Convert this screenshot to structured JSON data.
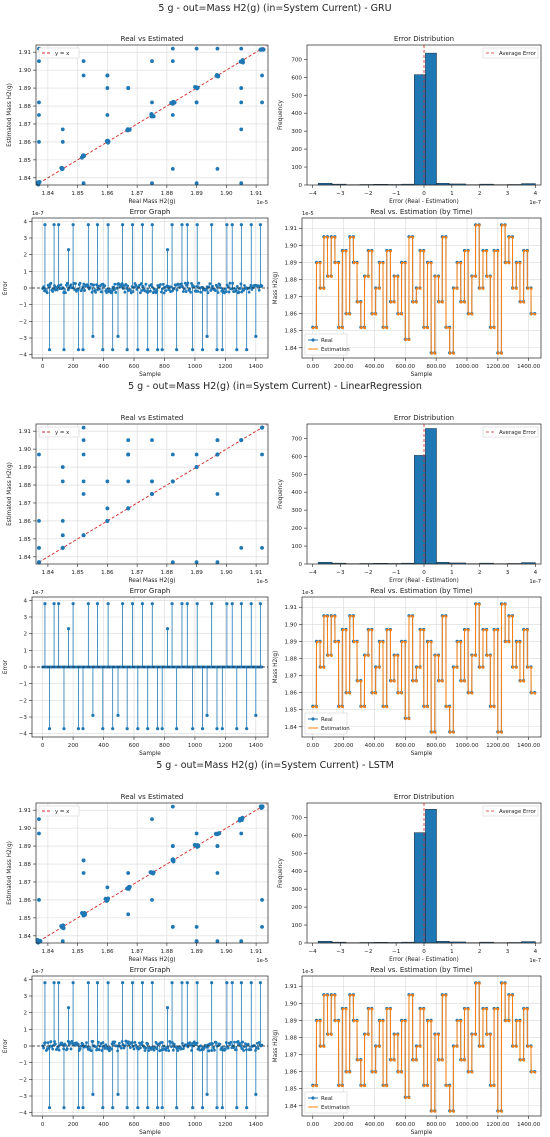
{
  "colors": {
    "blue": "#1f77b4",
    "orange": "#ff7f0e",
    "red": "#d62728",
    "grid": "#d9d9d9"
  },
  "groups": [
    {
      "title": "5 g - out=Mass H2(g) (in=System Current) - GRU",
      "variant": "gru"
    },
    {
      "title": "5 g - out=Mass H2(g) (in=System Current) - LinearRegression",
      "variant": "lr"
    },
    {
      "title": "5 g - out=Mass H2(g) (in=System Current) - LSTM",
      "variant": "lstm"
    }
  ],
  "chart_data": [
    {
      "type": "scatter",
      "title": "Real vs Estimated",
      "xlabel": "Real Mass H2(g)",
      "ylabel": "Estimated Mass H2(g)",
      "offset_label": "1e-5",
      "xlim": [
        1.836,
        1.914
      ],
      "ylim": [
        1.836,
        1.914
      ],
      "x_ticks": [
        1.84,
        1.85,
        1.86,
        1.87,
        1.88,
        1.89,
        1.9,
        1.91
      ],
      "y_ticks": [
        1.84,
        1.85,
        1.86,
        1.87,
        1.88,
        1.89,
        1.9,
        1.91
      ],
      "grid": true,
      "legend": {
        "position": "top-left",
        "entries": [
          "y = x"
        ]
      },
      "levels": [
        1.837,
        1.845,
        1.852,
        1.86,
        1.867,
        1.875,
        1.882,
        1.89,
        1.897,
        1.905,
        1.912
      ],
      "reference_line": "y = x"
    },
    {
      "type": "bar",
      "title": "Error Distribution",
      "xlabel": "Error (Real - Estimation)",
      "ylabel": "Frequency",
      "offset_label": "1e-7",
      "xlim": [
        -4.2,
        4.2
      ],
      "ylim": [
        0,
        780
      ],
      "x_ticks": [
        -4,
        -3,
        -2,
        -1,
        0,
        1,
        2,
        3,
        4
      ],
      "y_ticks": [
        0,
        100,
        200,
        300,
        400,
        500,
        600,
        700
      ],
      "bins": [
        {
          "x0": -3.8,
          "x1": -3.3,
          "count": 10
        },
        {
          "x0": -3.3,
          "x1": -2.8,
          "count": 5
        },
        {
          "x0": -2.8,
          "x1": -2.3,
          "count": 2
        },
        {
          "x0": -2.3,
          "x1": -1.8,
          "count": 3
        },
        {
          "x0": -1.8,
          "x1": -1.3,
          "count": 4
        },
        {
          "x0": -1.3,
          "x1": -0.8,
          "count": 3
        },
        {
          "x0": -0.8,
          "x1": -0.35,
          "count": 5
        },
        {
          "x0": -0.35,
          "x1": 0.05,
          "count": 615
        },
        {
          "x0": 0.05,
          "x1": 0.45,
          "count": 735
        },
        {
          "x0": 0.45,
          "x1": 0.9,
          "count": 10
        },
        {
          "x0": 0.9,
          "x1": 1.5,
          "count": 6
        },
        {
          "x0": 1.5,
          "x1": 2.0,
          "count": 2
        },
        {
          "x0": 2.0,
          "x1": 2.5,
          "count": 5
        },
        {
          "x0": 2.5,
          "x1": 3.0,
          "count": 2
        },
        {
          "x0": 3.0,
          "x1": 3.5,
          "count": 3
        },
        {
          "x0": 3.5,
          "x1": 4.0,
          "count": 8
        }
      ],
      "average_error": 0.0,
      "legend": {
        "position": "top-right",
        "entries": [
          "Average Error"
        ]
      }
    },
    {
      "type": "line",
      "title": "Error Graph",
      "xlabel": "Sample",
      "ylabel": "Error",
      "offset_label": "1e-7",
      "xlim": [
        -70,
        1480
      ],
      "ylim": [
        -4.2,
        4.2
      ],
      "x_ticks": [
        0,
        200,
        400,
        600,
        800,
        1000,
        1200,
        1400
      ],
      "y_ticks": [
        -4,
        -3,
        -2,
        -1,
        0,
        1,
        2,
        3,
        4
      ],
      "grid": true,
      "spike_samples": [
        15,
        45,
        75,
        105,
        140,
        170,
        200,
        235,
        265,
        300,
        330,
        360,
        395,
        430,
        460,
        495,
        525,
        555,
        590,
        625,
        655,
        690,
        720,
        755,
        785,
        820,
        850,
        880,
        915,
        950,
        985,
        1015,
        1050,
        1080,
        1110,
        1145,
        1180,
        1210,
        1245,
        1275,
        1305,
        1340,
        1370,
        1400,
        1430
      ],
      "spike_values": [
        3.8,
        -3.7,
        3.8,
        3.8,
        -3.7,
        2.3,
        3.8,
        -3.7,
        -3.7,
        3.8,
        -2.9,
        3.8,
        -3.7,
        3.8,
        -3.7,
        -2.9,
        3.8,
        -3.7,
        3.8,
        -3.7,
        3.8,
        -3.7,
        3.8,
        -3.7,
        -3.7,
        2.3,
        3.8,
        -3.7,
        3.8,
        3.8,
        -3.7,
        3.8,
        -3.7,
        -2.9,
        3.8,
        -3.7,
        -3.7,
        3.8,
        3.8,
        -3.7,
        3.8,
        -3.7,
        3.8,
        -2.9,
        3.8
      ]
    },
    {
      "type": "line",
      "title": "Real vs. Estimation (by Time)",
      "xlabel": "Sample",
      "ylabel": "Mass H2(g)",
      "offset_label": "1e-5",
      "xlim": [
        -70,
        1480
      ],
      "ylim": [
        1.834,
        1.916
      ],
      "x_ticks": [
        0,
        200,
        400,
        600,
        800,
        1000,
        1200,
        1400
      ],
      "y_ticks": [
        1.84,
        1.85,
        1.86,
        1.87,
        1.88,
        1.89,
        1.9,
        1.91
      ],
      "legend": {
        "position": "bottom-left",
        "entries": [
          "Real",
          "Estimation"
        ]
      },
      "series": [
        {
          "name": "Real",
          "color": "#1f77b4"
        },
        {
          "name": "Estimation",
          "color": "#ff7f0e"
        }
      ],
      "step_length": 24,
      "levels_sequence": [
        1.852,
        1.89,
        1.875,
        1.905,
        1.882,
        1.905,
        1.89,
        1.852,
        1.897,
        1.86,
        1.905,
        1.89,
        1.867,
        1.852,
        1.882,
        1.897,
        1.86,
        1.875,
        1.89,
        1.852,
        1.897,
        1.867,
        1.882,
        1.86,
        1.89,
        1.845,
        1.905,
        1.867,
        1.875,
        1.897,
        1.852,
        1.89,
        1.837,
        1.882,
        1.867,
        1.905,
        1.852,
        1.837,
        1.875,
        1.89,
        1.867,
        1.897,
        1.86,
        1.882,
        1.912,
        1.875,
        1.897,
        1.882,
        1.852,
        1.897,
        1.837,
        1.912,
        1.89,
        1.905,
        1.875,
        1.89,
        1.867,
        1.897,
        1.875,
        1.86
      ]
    }
  ]
}
